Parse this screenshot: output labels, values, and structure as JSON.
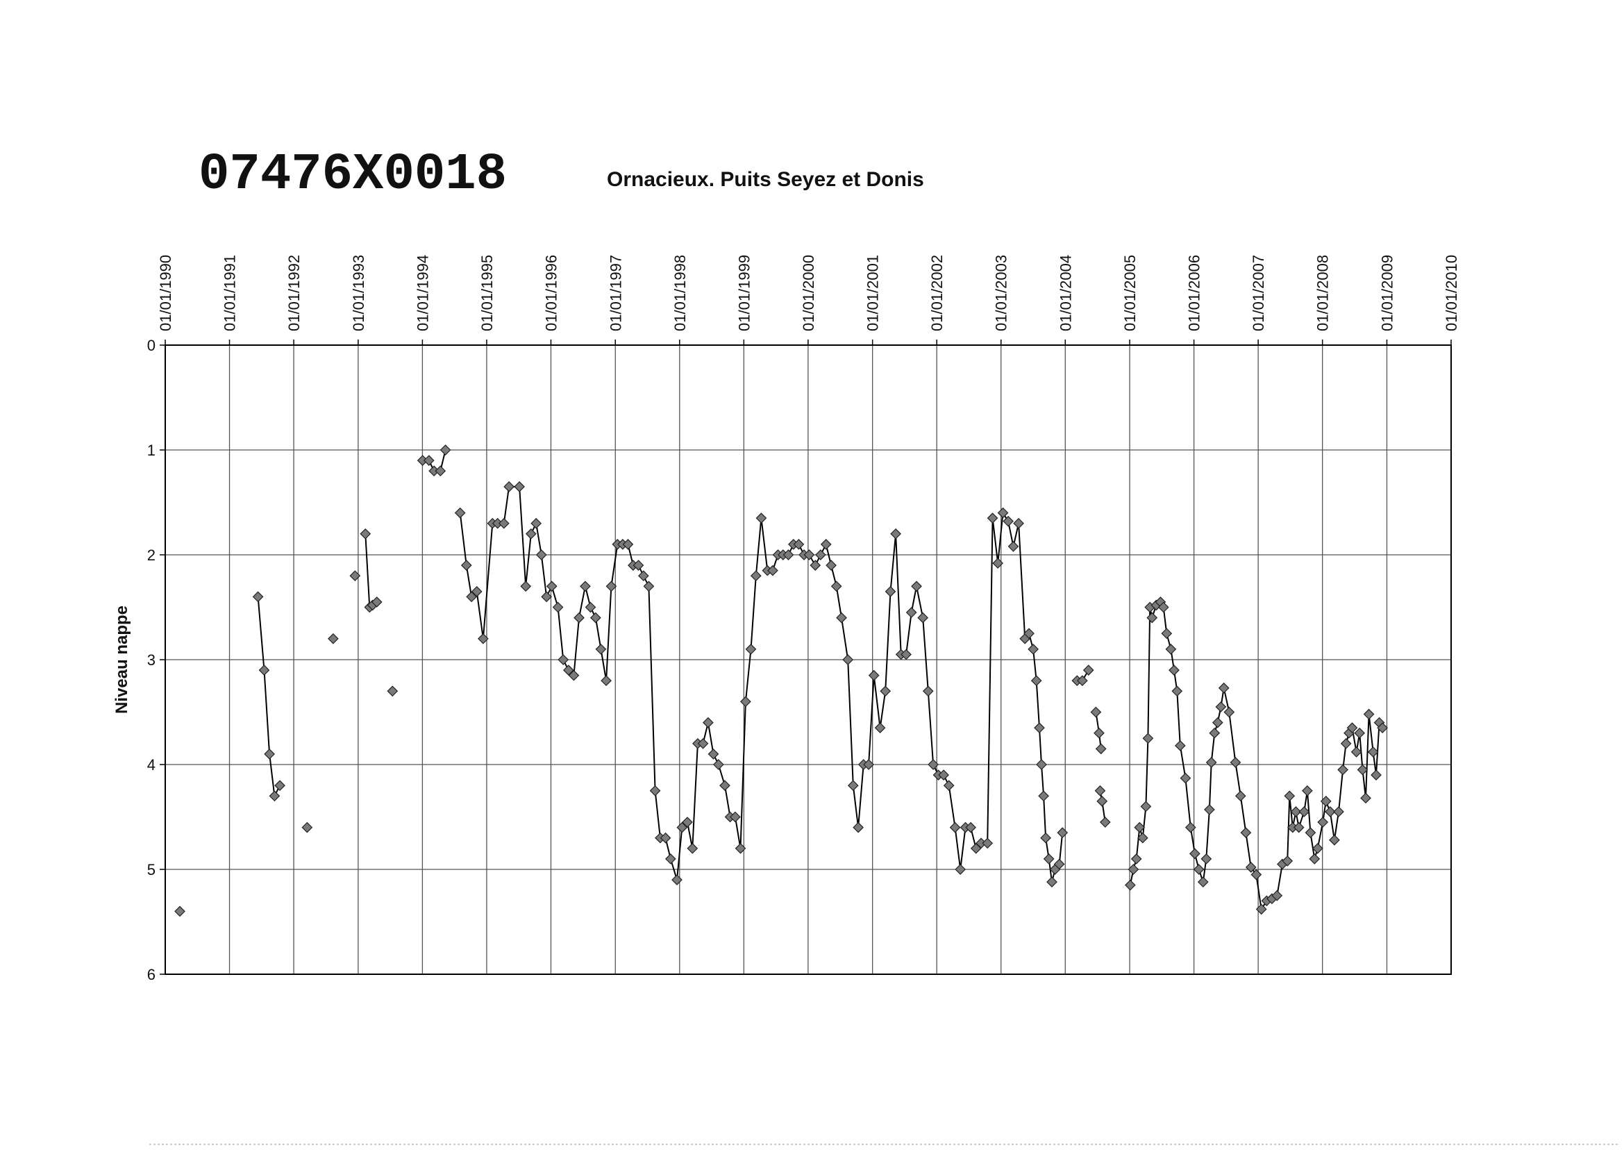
{
  "chart_data": {
    "type": "line",
    "title": "07476X0018",
    "subtitle": "Ornacieux. Puits Seyez et Donis",
    "y_label": "Niveau nappe",
    "color": "#000000",
    "marker_color": "#7a7a7a",
    "marker": "diamond",
    "grid": true,
    "y_reversed": true,
    "ylim": [
      0,
      6
    ],
    "yticks": [
      0,
      1,
      2,
      3,
      4,
      5,
      6
    ],
    "xlim": [
      "1990-01-01",
      "2010-01-01"
    ],
    "xticks": [
      {
        "value": "1990-01-01",
        "label": "01/01/1990"
      },
      {
        "value": "1991-01-01",
        "label": "01/01/1991"
      },
      {
        "value": "1992-01-01",
        "label": "01/01/1992"
      },
      {
        "value": "1993-01-01",
        "label": "01/01/1993"
      },
      {
        "value": "1994-01-01",
        "label": "01/01/1994"
      },
      {
        "value": "1995-01-01",
        "label": "01/01/1995"
      },
      {
        "value": "1996-01-01",
        "label": "01/01/1996"
      },
      {
        "value": "1997-01-01",
        "label": "01/01/1997"
      },
      {
        "value": "1998-01-01",
        "label": "01/01/1998"
      },
      {
        "value": "1999-01-01",
        "label": "01/01/1999"
      },
      {
        "value": "2000-01-01",
        "label": "01/01/2000"
      },
      {
        "value": "2001-01-01",
        "label": "01/01/2001"
      },
      {
        "value": "2002-01-01",
        "label": "01/01/2002"
      },
      {
        "value": "2003-01-01",
        "label": "01/01/2003"
      },
      {
        "value": "2004-01-01",
        "label": "01/01/2004"
      },
      {
        "value": "2005-01-01",
        "label": "01/01/2005"
      },
      {
        "value": "2006-01-01",
        "label": "01/01/2006"
      },
      {
        "value": "2007-01-01",
        "label": "01/01/2007"
      },
      {
        "value": "2008-01-01",
        "label": "01/01/2008"
      },
      {
        "value": "2009-01-01",
        "label": "01/01/2009"
      },
      {
        "value": "2010-01-01",
        "label": "01/01/2010"
      }
    ],
    "x": [
      "1990-03-25",
      null,
      "1991-06-12",
      "1991-07-17",
      "1991-08-16",
      "1991-09-14",
      "1991-10-14",
      null,
      "1992-03-17",
      null,
      "1992-08-12",
      null,
      "1992-12-14",
      null,
      "1993-02-11",
      "1993-03-07",
      "1993-03-24",
      "1993-04-17",
      null,
      "1993-07-15",
      null,
      "1994-01-02",
      "1994-02-07",
      "1994-03-08",
      "1994-04-13",
      "1994-05-12",
      null,
      "1994-08-03",
      "1994-09-08",
      "1994-10-07",
      "1994-11-06",
      "1994-12-12",
      "1995-02-03",
      "1995-03-04",
      "1995-04-09",
      "1995-05-08",
      "1995-07-06",
      "1995-08-11",
      "1995-09-10",
      "1995-10-09",
      "1995-11-08",
      "1995-12-07",
      "1996-01-06",
      "1996-02-10",
      "1996-03-11",
      "1996-04-10",
      "1996-05-10",
      "1996-06-09",
      "1996-07-14",
      "1996-08-13",
      "1996-09-11",
      "1996-10-11",
      "1996-11-10",
      "1996-12-09",
      "1997-01-13",
      "1997-02-12",
      "1997-03-14",
      "1997-04-12",
      "1997-05-12",
      "1997-06-10",
      "1997-07-10",
      "1997-08-15",
      "1997-09-13",
      "1997-10-13",
      "1997-11-11",
      "1997-12-17",
      "1998-01-15",
      "1998-02-14",
      "1998-03-15",
      "1998-04-14",
      "1998-05-14",
      "1998-06-12",
      "1998-07-12",
      "1998-08-10",
      "1998-09-15",
      "1998-10-15",
      "1998-11-13",
      "1998-12-13",
      "1999-01-11",
      "1999-02-10",
      "1999-03-11",
      "1999-04-10",
      "1999-05-15",
      "1999-06-14",
      "1999-07-14",
      "1999-08-12",
      "1999-09-11",
      "1999-10-10",
      "1999-11-09",
      "1999-12-09",
      "2000-01-07",
      "2000-02-11",
      "2000-03-12",
      "2000-04-12",
      "2000-05-11",
      "2000-06-10",
      "2000-07-09",
      "2000-08-14",
      "2000-09-13",
      "2000-10-12",
      "2000-11-11",
      "2000-12-10",
      "2001-01-09",
      "2001-02-13",
      "2001-03-15",
      "2001-04-13",
      "2001-05-13",
      "2001-06-12",
      "2001-07-11",
      "2001-08-10",
      "2001-09-08",
      "2001-10-14",
      "2001-11-13",
      "2001-12-12",
      "2002-01-10",
      "2002-02-09",
      "2002-03-11",
      "2002-04-15",
      "2002-05-15",
      "2002-06-13",
      "2002-07-13",
      "2002-08-12",
      "2002-09-10",
      "2002-10-16",
      "2002-11-14",
      "2002-12-14",
      "2003-01-12",
      "2003-02-11",
      "2003-03-12",
      "2003-04-11",
      "2003-05-17",
      "2003-06-09",
      "2003-07-03",
      "2003-07-21",
      "2003-08-07",
      "2003-08-19",
      "2003-08-31",
      "2003-09-12",
      "2003-09-30",
      "2003-10-17",
      "2003-11-04",
      "2003-11-28",
      "2003-12-16",
      null,
      "2004-03-08",
      "2004-04-07",
      "2004-05-12",
      null,
      "2004-06-23",
      "2004-07-11",
      "2004-07-22",
      null,
      "2004-07-17",
      "2004-07-28",
      "2004-08-15",
      null,
      "2005-01-04",
      "2005-01-22",
      "2005-02-08",
      "2005-02-26",
      "2005-03-16",
      "2005-04-03",
      "2005-04-15",
      "2005-04-26",
      "2005-05-08",
      "2005-06-01",
      "2005-06-25",
      "2005-07-12",
      "2005-07-30",
      "2005-08-23",
      "2005-09-10",
      "2005-09-27",
      "2005-10-15",
      "2005-11-14",
      "2005-12-13",
      "2006-01-06",
      "2006-01-29",
      "2006-02-22",
      "2006-03-12",
      "2006-03-30",
      "2006-04-10",
      "2006-04-28",
      "2006-05-16",
      "2006-06-03",
      "2006-06-20",
      "2006-07-20",
      "2006-08-25",
      "2006-09-23",
      "2006-10-23",
      "2006-11-21",
      "2006-12-21",
      "2007-01-19",
      "2007-02-18",
      "2007-03-20",
      "2007-04-18",
      "2007-05-18",
      "2007-06-16",
      "2007-06-28",
      "2007-07-16",
      "2007-08-03",
      "2007-08-20",
      "2007-09-19",
      "2007-10-07",
      "2007-10-25",
      "2007-11-17",
      "2007-12-05",
      "2008-01-03",
      "2008-01-21",
      "2008-02-14",
      "2008-03-09",
      "2008-04-02",
      "2008-04-26",
      "2008-05-14",
      "2008-05-31",
      "2008-06-18",
      "2008-07-12",
      "2008-07-30",
      "2008-08-16",
      "2008-09-03",
      "2008-09-21",
      "2008-10-15",
      "2008-11-01",
      "2008-11-19",
      "2008-12-07"
    ],
    "values": [
      5.4,
      null,
      2.4,
      3.1,
      3.9,
      4.3,
      4.2,
      null,
      4.6,
      null,
      2.8,
      null,
      2.2,
      null,
      1.8,
      2.5,
      2.48,
      2.45,
      null,
      3.3,
      null,
      1.1,
      1.1,
      1.2,
      1.2,
      1.0,
      null,
      1.6,
      2.1,
      2.4,
      2.35,
      2.8,
      1.7,
      1.7,
      1.7,
      1.35,
      1.35,
      2.3,
      1.8,
      1.7,
      2.0,
      2.4,
      2.3,
      2.5,
      3.0,
      3.1,
      3.15,
      2.6,
      2.3,
      2.5,
      2.6,
      2.9,
      3.2,
      2.3,
      1.9,
      1.9,
      1.9,
      2.1,
      2.1,
      2.2,
      2.3,
      4.25,
      4.7,
      4.7,
      4.9,
      5.1,
      4.6,
      4.55,
      4.8,
      3.8,
      3.8,
      3.6,
      3.9,
      4.0,
      4.2,
      4.5,
      4.5,
      4.8,
      3.4,
      2.9,
      2.2,
      1.65,
      2.15,
      2.15,
      2.0,
      2.0,
      2.0,
      1.9,
      1.9,
      2.0,
      2.0,
      2.1,
      2.0,
      1.9,
      2.1,
      2.3,
      2.6,
      3.0,
      4.2,
      4.6,
      4.0,
      4.0,
      3.15,
      3.65,
      3.3,
      2.35,
      1.8,
      2.95,
      2.95,
      2.55,
      2.3,
      2.6,
      3.3,
      4.0,
      4.1,
      4.1,
      4.2,
      4.6,
      5.0,
      4.6,
      4.6,
      4.8,
      4.75,
      4.75,
      1.65,
      2.08,
      1.6,
      1.68,
      1.92,
      1.7,
      2.8,
      2.75,
      2.9,
      3.2,
      3.65,
      4.0,
      4.3,
      4.7,
      4.9,
      5.12,
      5.0,
      4.95,
      4.65,
      null,
      3.2,
      3.2,
      3.1,
      null,
      3.5,
      3.7,
      3.85,
      null,
      4.25,
      4.35,
      4.55,
      null,
      5.15,
      5.0,
      4.9,
      4.6,
      4.7,
      4.4,
      3.75,
      2.5,
      2.6,
      2.48,
      2.45,
      2.5,
      2.75,
      2.9,
      3.1,
      3.3,
      3.82,
      4.13,
      4.6,
      4.85,
      5.0,
      5.12,
      4.9,
      4.43,
      3.98,
      3.7,
      3.6,
      3.45,
      3.27,
      3.5,
      3.98,
      4.3,
      4.65,
      4.98,
      5.05,
      5.38,
      5.3,
      5.28,
      5.25,
      4.95,
      4.92,
      4.3,
      4.6,
      4.45,
      4.6,
      4.45,
      4.25,
      4.65,
      4.9,
      4.8,
      4.55,
      4.35,
      4.45,
      4.72,
      4.45,
      4.05,
      3.8,
      3.7,
      3.65,
      3.88,
      3.7,
      4.05,
      4.32,
      3.52,
      3.88,
      4.1,
      3.6,
      3.65
    ]
  }
}
